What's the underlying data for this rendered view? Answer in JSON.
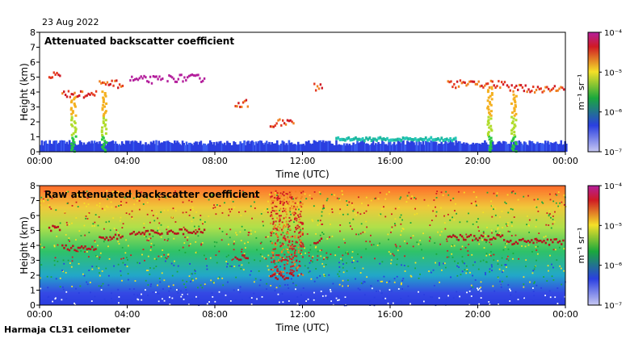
{
  "header": {
    "date": "23 Aug 2022"
  },
  "footer": {
    "station": "Harmaja CL31 ceilometer"
  },
  "colorbar": {
    "unit_label": "m⁻¹ sr⁻¹",
    "tick_labels": [
      "10⁻⁴",
      "10⁻⁵",
      "10⁻⁶",
      "10⁻⁷"
    ],
    "colors": [
      "#b41f9c",
      "#d01a24",
      "#f4e028",
      "#1aa83c",
      "#2a3fe0",
      "#c7c8f2"
    ]
  },
  "chart_data": [
    {
      "type": "heatmap",
      "title": "Attenuated backscatter coefficient",
      "xlabel": "Time (UTC)",
      "ylabel": "Height (km)",
      "xlim": [
        0,
        24
      ],
      "ylim": [
        0,
        8
      ],
      "x_ticks": [
        "00:00",
        "04:00",
        "08:00",
        "12:00",
        "16:00",
        "20:00",
        "00:00"
      ],
      "y_ticks": [
        "0",
        "1",
        "2",
        "3",
        "4",
        "5",
        "6",
        "7",
        "8"
      ],
      "features": [
        {
          "name": "cloud layer",
          "t_start": 0.4,
          "t_end": 0.9,
          "height_km": 5.2
        },
        {
          "name": "cloud layer",
          "t_start": 1.0,
          "t_end": 2.6,
          "height_km": 3.9
        },
        {
          "name": "cloud layer",
          "t_start": 2.7,
          "t_end": 3.8,
          "height_km": 4.6
        },
        {
          "name": "cloud layer",
          "t_start": 4.1,
          "t_end": 5.6,
          "height_km": 4.9
        },
        {
          "name": "cloud layer",
          "t_start": 5.8,
          "t_end": 7.5,
          "height_km": 5.0
        },
        {
          "name": "cloud layer",
          "t_start": 8.9,
          "t_end": 9.5,
          "height_km": 3.3
        },
        {
          "name": "cloud layer",
          "t_start": 10.5,
          "t_end": 11.6,
          "height_km": 2.0
        },
        {
          "name": "cloud layer",
          "t_start": 12.5,
          "t_end": 12.9,
          "height_km": 4.4
        },
        {
          "name": "cloud layer",
          "t_start": 18.6,
          "t_end": 21.2,
          "height_km": 4.6
        },
        {
          "name": "cloud layer",
          "t_start": 21.3,
          "t_end": 23.9,
          "height_km": 4.3
        }
      ],
      "boundary_layer_top_km": 0.6
    },
    {
      "type": "heatmap",
      "title": "Raw attenuated backscatter coefficient",
      "xlabel": "Time (UTC)",
      "ylabel": "Height (km)",
      "xlim": [
        0,
        24
      ],
      "ylim": [
        0,
        8
      ],
      "x_ticks": [
        "00:00",
        "04:00",
        "08:00",
        "12:00",
        "16:00",
        "20:00",
        "00:00"
      ],
      "y_ticks": [
        "0",
        "1",
        "2",
        "3",
        "4",
        "5",
        "6",
        "7",
        "8"
      ],
      "note": "noisy raw signal; high values aloft, low values near 0-2 km"
    }
  ]
}
